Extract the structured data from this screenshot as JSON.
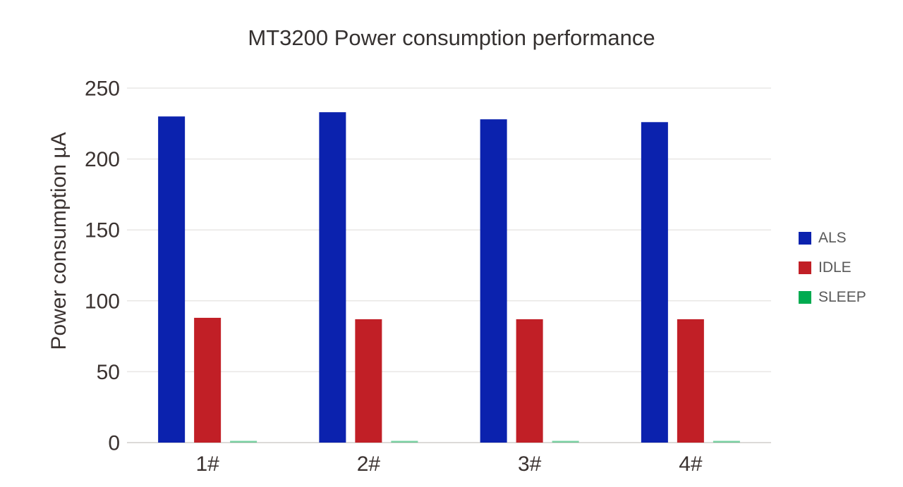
{
  "page": {
    "background": "#ffffff"
  },
  "chart_data": {
    "type": "bar",
    "title": "MT3200 Power consumption performance",
    "ylabel": "Power consumption µA",
    "xlabel": "",
    "categories": [
      "1#",
      "2#",
      "3#",
      "4#"
    ],
    "series": [
      {
        "name": "ALS",
        "color": "#0b22ae",
        "values": [
          230,
          233,
          228,
          226
        ]
      },
      {
        "name": "IDLE",
        "color": "#c11f26",
        "values": [
          88,
          87,
          87,
          87
        ]
      },
      {
        "name": "SLEEP",
        "color": "#00ab50",
        "values": [
          1,
          1,
          1,
          1
        ]
      }
    ],
    "ylim": [
      0,
      250
    ],
    "ytick_step": 50,
    "yticks": [
      0,
      50,
      100,
      150,
      200,
      250
    ],
    "grid": true,
    "legend_position": "right"
  },
  "colors": {
    "grid": "#e9e7e5",
    "axis_line": "#dcdad8",
    "tick_text": "#3b3331",
    "title_text": "#353130",
    "legend_text": "#595959"
  }
}
